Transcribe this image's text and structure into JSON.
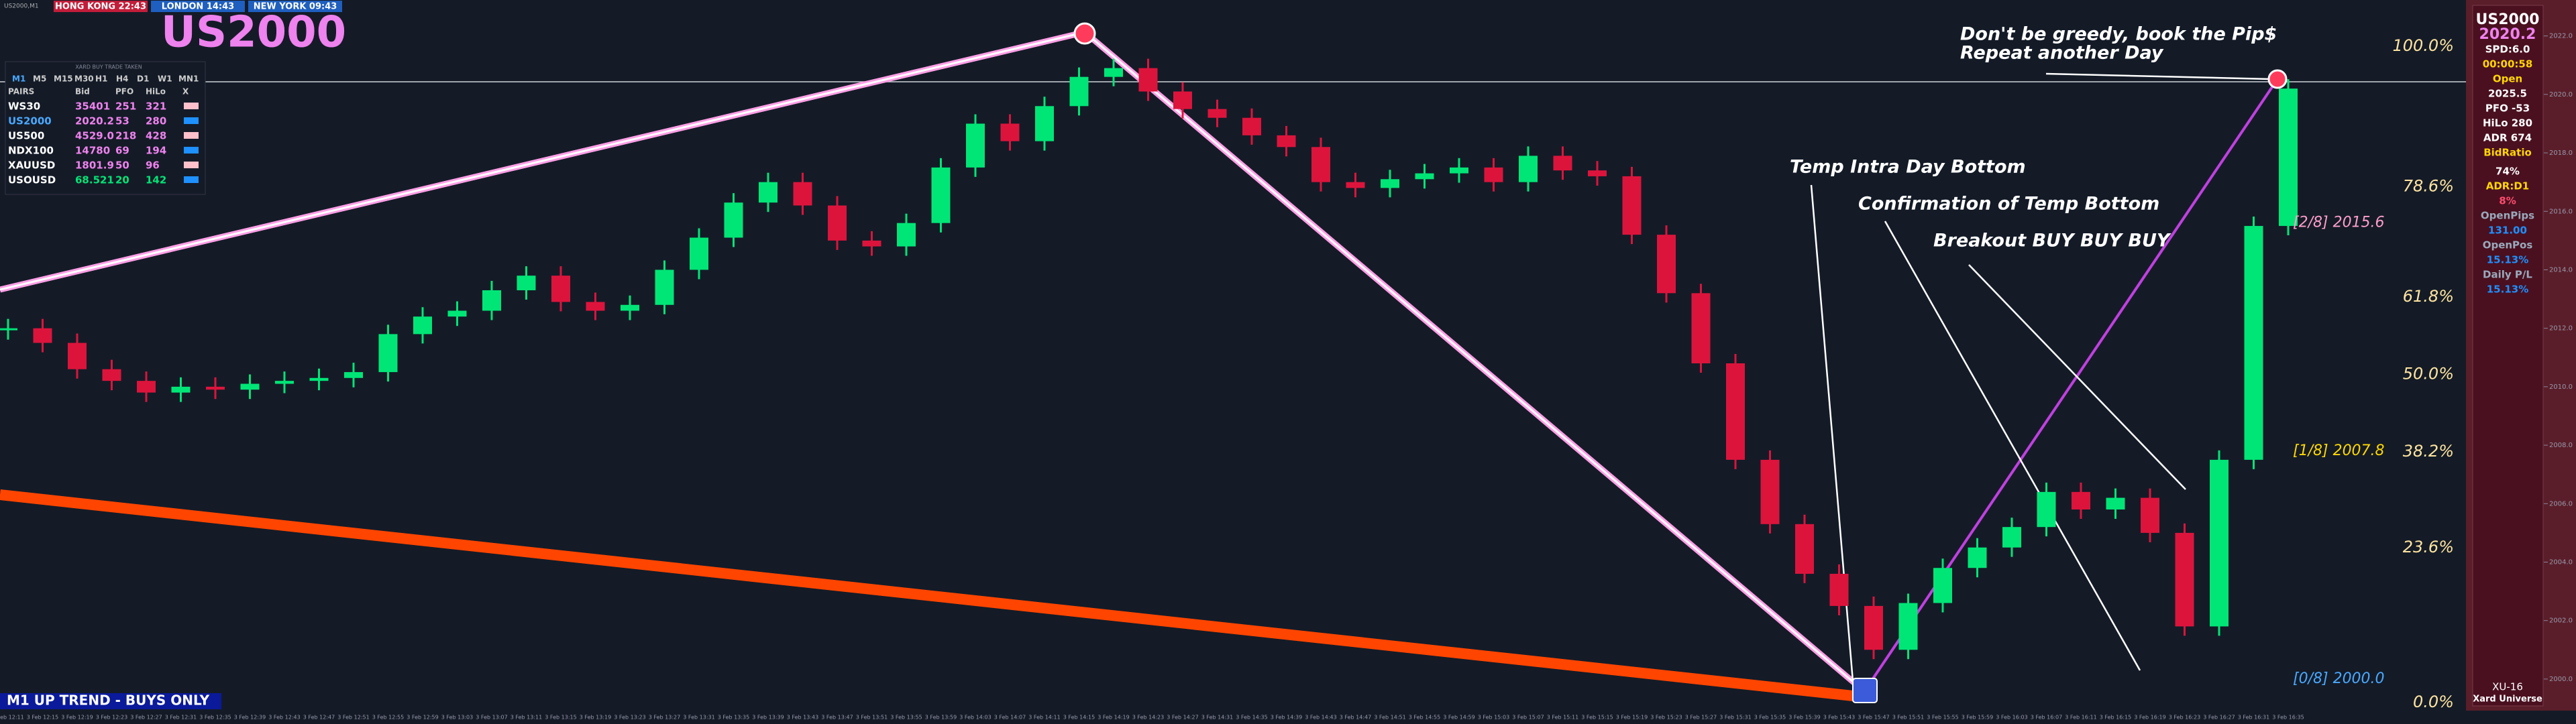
{
  "top_bar": {
    "symbol": "US2000,M1",
    "clocks": [
      "HONG KONG 22:43",
      "LONDON  14:43",
      "NEW YORK 09:43"
    ]
  },
  "watermark": "US2000",
  "pairs_panel": {
    "caption": "XARD BUY TRADE TAKEN",
    "timeframes": [
      "M1",
      "M5",
      "M15",
      "M30",
      "H1",
      "H4",
      "D1",
      "W1",
      "MN1"
    ],
    "header": [
      "PAIRS",
      "Bid",
      "PFO",
      "HiLo",
      "X"
    ],
    "rows": [
      [
        "WS30",
        "35401",
        "251",
        "321"
      ],
      [
        "US2000",
        "2020.2",
        "53",
        "280"
      ],
      [
        "US500",
        "4529.0",
        "218",
        "428"
      ],
      [
        "NDX100",
        "14780",
        "69",
        "194"
      ],
      [
        "XAUUSD",
        "1801.9",
        "50",
        "96"
      ],
      [
        "USOUSD",
        "68.521",
        "20",
        "142"
      ]
    ]
  },
  "info_panel": [
    {
      "text": "US2000",
      "color": "#ffffff"
    },
    {
      "text": "2020.2",
      "color": "#ee82ee"
    },
    {
      "text": "SPD:6.0",
      "color": "#ffffff"
    },
    {
      "text": "00:00:58",
      "color": "#ffd700"
    },
    {
      "text": "Open",
      "color": "#ffd700"
    },
    {
      "text": "2025.5",
      "color": "#ffffff"
    },
    {
      "text": "PFO   -53",
      "color": "#ffffff"
    },
    {
      "text": "HiLo   280",
      "color": "#ffffff"
    },
    {
      "text": "ADR   674",
      "color": "#ffffff"
    },
    {
      "text": "BidRatio",
      "color": "#ffd700"
    },
    {
      "text": "74%",
      "color": "#ffffff"
    },
    {
      "text": "ADR:D1",
      "color": "#ffd700"
    },
    {
      "text": "8%",
      "color": "#ff4d6d"
    },
    {
      "text": "OpenPips",
      "color": "#9ab"
    },
    {
      "text": "131.00",
      "color": "#1e90ff"
    },
    {
      "text": "OpenPos",
      "color": "#9ab"
    },
    {
      "text": "15.13%",
      "color": "#1e90ff"
    },
    {
      "text": "Daily P/L",
      "color": "#9ab"
    },
    {
      "text": "15.13%",
      "color": "#1e90ff"
    }
  ],
  "footer_panel": [
    "XU-16",
    "Xard Universe"
  ],
  "trend_label": "M1 UP TREND - BUYS ONLY",
  "annotations": [
    "Don't be greedy, book the Pip$",
    "Repeat another Day",
    "Temp Intra Day Bottom",
    "Confirmation of Temp Bottom",
    "Breakout BUY BUY BUY"
  ],
  "chart_data": {
    "type": "candlestick",
    "categories": [
      "3 Feb 12:11",
      "3 Feb 12:15",
      "3 Feb 12:19",
      "3 Feb 12:23",
      "3 Feb 12:27",
      "3 Feb 12:31",
      "3 Feb 12:35",
      "3 Feb 12:39",
      "3 Feb 12:43",
      "3 Feb 12:47",
      "3 Feb 12:51",
      "3 Feb 12:55",
      "3 Feb 12:59",
      "3 Feb 13:03",
      "3 Feb 13:07",
      "3 Feb 13:11",
      "3 Feb 13:15",
      "3 Feb 13:19",
      "3 Feb 13:23",
      "3 Feb 13:27",
      "3 Feb 13:31",
      "3 Feb 13:35",
      "3 Feb 13:39",
      "3 Feb 13:43",
      "3 Feb 13:47",
      "3 Feb 13:51",
      "3 Feb 13:55",
      "3 Feb 13:59",
      "3 Feb 14:03",
      "3 Feb 14:07",
      "3 Feb 14:11",
      "3 Feb 14:15",
      "3 Feb 14:19",
      "3 Feb 14:23",
      "3 Feb 14:27",
      "3 Feb 14:31",
      "3 Feb 14:35",
      "3 Feb 14:39",
      "3 Feb 14:43",
      "3 Feb 14:47",
      "3 Feb 14:51",
      "3 Feb 14:55",
      "3 Feb 14:59",
      "3 Feb 15:03",
      "3 Feb 15:07",
      "3 Feb 15:11",
      "3 Feb 15:15",
      "3 Feb 15:19",
      "3 Feb 15:23",
      "3 Feb 15:27",
      "3 Feb 15:31",
      "3 Feb 15:35",
      "3 Feb 15:39",
      "3 Feb 15:43",
      "3 Feb 15:47",
      "3 Feb 15:51",
      "3 Feb 15:55",
      "3 Feb 15:59",
      "3 Feb 16:03",
      "3 Feb 16:07",
      "3 Feb 16:11",
      "3 Feb 16:15",
      "3 Feb 16:19",
      "3 Feb 16:23",
      "3 Feb 16:27",
      "3 Feb 16:31",
      "3 Feb 16:35"
    ],
    "close": [
      2012.0,
      2011.5,
      2010.6,
      2010.2,
      2009.8,
      2010.0,
      2009.9,
      2010.1,
      2010.2,
      2010.3,
      2010.5,
      2011.8,
      2012.4,
      2012.6,
      2013.3,
      2013.8,
      2012.9,
      2012.6,
      2012.8,
      2014.0,
      2015.1,
      2016.3,
      2017.0,
      2016.2,
      2015.0,
      2014.8,
      2015.6,
      2017.5,
      2019.0,
      2018.4,
      2019.6,
      2020.6,
      2020.9,
      2020.1,
      2019.5,
      2019.2,
      2018.6,
      2018.2,
      2017.0,
      2016.8,
      2017.1,
      2017.3,
      2017.5,
      2017.0,
      2017.9,
      2017.4,
      2017.2,
      2015.2,
      2013.2,
      2010.8,
      2007.5,
      2005.3,
      2003.6,
      2002.5,
      2001.0,
      2002.6,
      2003.8,
      2004.5,
      2005.2,
      2006.4,
      2005.8,
      2006.2,
      2005.0,
      2001.8,
      2007.5,
      2015.5,
      2020.2
    ],
    "up_color": "#00e676",
    "down_color": "#dc143c",
    "ylim": [
      1998.92,
      2023.23
    ],
    "yticks": [
      {
        "value": 2000,
        "label": "2000.0"
      },
      {
        "value": 2002,
        "label": "2002.0"
      },
      {
        "value": 2004,
        "label": "2004.0"
      },
      {
        "value": 2006,
        "label": "2006.0"
      },
      {
        "value": 2008,
        "label": "2008.0"
      },
      {
        "value": 2010,
        "label": "2010.0"
      },
      {
        "value": 2012,
        "label": "2012.0"
      },
      {
        "value": 2014,
        "label": "2014.0"
      },
      {
        "value": 2016,
        "label": "2016.0"
      },
      {
        "value": 2018,
        "label": "2018.0"
      },
      {
        "value": 2020,
        "label": "2020.0"
      },
      {
        "value": 2022,
        "label": "2022.0"
      }
    ],
    "y2lim": [
      -1.23,
      107.05
    ],
    "y2ticks": [
      {
        "value": 100,
        "label": "100.0%"
      },
      {
        "value": 78.6,
        "label": "78.6%"
      },
      {
        "value": 61.8,
        "label": "61.8%"
      },
      {
        "value": 50,
        "label": "50.0%"
      },
      {
        "value": 38.2,
        "label": "38.2%"
      },
      {
        "value": 23.6,
        "label": "23.6%"
      },
      {
        "value": 0,
        "label": "0.0%"
      }
    ],
    "levels": [
      {
        "value": 2015.6,
        "label": "[2/8] 2015.6",
        "color": "#ff9ecb"
      },
      {
        "value": 2007.8,
        "label": "[1/8] 2007.8",
        "color": "#ffd700"
      },
      {
        "value": 2000.0,
        "label": "[0/8] 2000.0",
        "color": "#4aa8ff"
      }
    ]
  }
}
